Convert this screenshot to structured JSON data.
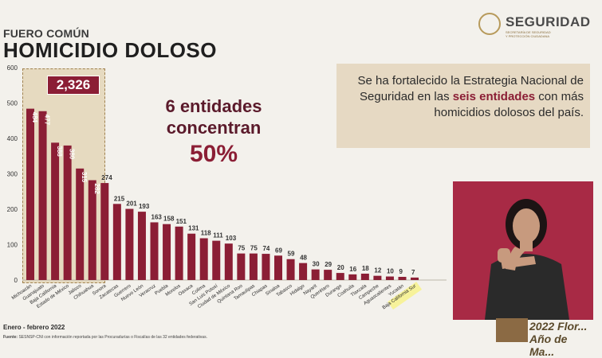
{
  "header": {
    "subtitle": "FUERO COMÚN",
    "title": "HOMICIDIO DOLOSO"
  },
  "logo": {
    "name": "SEGURIDAD",
    "sub1": "SECRETARÍA DE SEGURIDAD",
    "sub2": "Y PROTECCIÓN CIUDADANA"
  },
  "highlight": {
    "total": "2,326"
  },
  "headline": {
    "line1": "6 entidades",
    "line2": "concentran",
    "line3": "50%"
  },
  "note": {
    "part1": "Se ha fortalecido la Estrategia Nacional de Seguridad en las ",
    "highlight": "seis entidades",
    "part2": " con más homicidios dolosos del país."
  },
  "footer": {
    "period": "Enero - febrero 2022",
    "source_label": "Fuente:",
    "source_text": "SESNSP-CNI con información reportada por las Procuradurías o Fiscalías de las 32 entidades federativas."
  },
  "stamp": {
    "text": "2022 Flor... Año de Ma..."
  },
  "colors": {
    "bar": "#8b1e35",
    "accent": "#8b1e35",
    "highlight_fill": "#d7be8c",
    "last_label_highlight": "#f7f29a"
  },
  "chart_data": {
    "type": "bar",
    "categories": [
      "Michoacán",
      "Guanajuato",
      "Baja California",
      "Estado de México",
      "Jalisco",
      "Chihuahua",
      "Sonora",
      "Zacatecas",
      "Guerrero",
      "Nuevo León",
      "Veracruz",
      "Puebla",
      "Morelos",
      "Oaxaca",
      "Colima",
      "San Luis Potosí",
      "Ciudad de México",
      "Quintana Roo",
      "Tamaulipas",
      "Chiapas",
      "Sinaloa",
      "Tabasco",
      "Hidalgo",
      "Nayarit",
      "Querétaro",
      "Durango",
      "Coahuila",
      "Tlaxcala",
      "Campeche",
      "Aguascalientes",
      "Yucatán",
      "Baja California Sur"
    ],
    "values": [
      484,
      477,
      388,
      380,
      315,
      282,
      274,
      215,
      201,
      193,
      163,
      158,
      151,
      131,
      118,
      111,
      103,
      75,
      75,
      74,
      69,
      59,
      48,
      30,
      29,
      20,
      16,
      18,
      12,
      10,
      9,
      7
    ],
    "ylim": [
      0,
      600
    ],
    "yticks": [
      0,
      100,
      200,
      300,
      400,
      500,
      600
    ],
    "highlighted_count": 6
  }
}
